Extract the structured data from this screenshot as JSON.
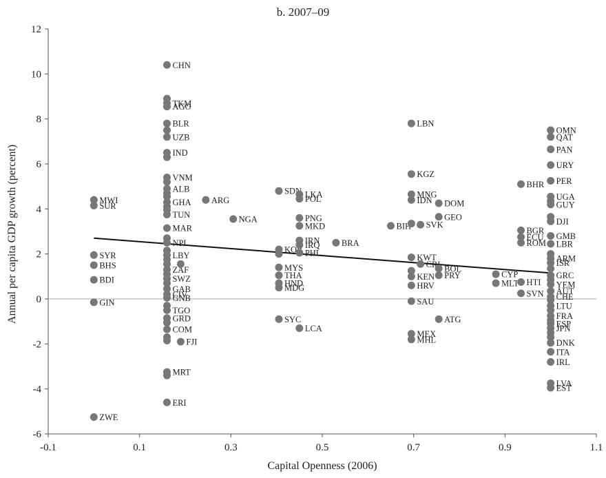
{
  "chart_data": {
    "type": "scatter",
    "title": "b. 2007–09",
    "xlabel": "Capital Openness (2006)",
    "ylabel": "Annual per capita GDP growth (percent)",
    "xlim": [
      -0.1,
      1.1
    ],
    "ylim": [
      -6,
      12
    ],
    "xticks": [
      "-0.1",
      "0.1",
      "0.3",
      "0.5",
      "0.7",
      "0.9",
      "1.1"
    ],
    "yticks": [
      "-6",
      "-4",
      "-2",
      "0",
      "2",
      "4",
      "6",
      "8",
      "10",
      "12"
    ],
    "grid": false,
    "zero_line": true,
    "colors": {
      "marker": "#777777",
      "trend": "#111111",
      "axis": "#555555"
    },
    "trendline": {
      "x": [
        0.0,
        1.0
      ],
      "y": [
        2.7,
        1.15
      ]
    },
    "points": [
      {
        "label": "MWI",
        "x": 0.0,
        "y": 4.4
      },
      {
        "label": "SUR",
        "x": 0.0,
        "y": 4.15
      },
      {
        "label": "SYR",
        "x": 0.0,
        "y": 1.95
      },
      {
        "label": "BHS",
        "x": 0.0,
        "y": 1.5
      },
      {
        "label": "BDI",
        "x": 0.0,
        "y": 0.85
      },
      {
        "label": "GIN",
        "x": 0.0,
        "y": -0.15
      },
      {
        "label": "ZWE",
        "x": 0.0,
        "y": -5.25
      },
      {
        "label": "CHN",
        "x": 0.16,
        "y": 10.4
      },
      {
        "label": "",
        "x": 0.16,
        "y": 8.9
      },
      {
        "label": "TKM",
        "x": 0.16,
        "y": 8.7
      },
      {
        "label": "AGO",
        "x": 0.16,
        "y": 8.55
      },
      {
        "label": "BLR",
        "x": 0.16,
        "y": 7.8
      },
      {
        "label": "",
        "x": 0.16,
        "y": 7.5
      },
      {
        "label": "UZB",
        "x": 0.16,
        "y": 7.2
      },
      {
        "label": "IND",
        "x": 0.16,
        "y": 6.5
      },
      {
        "label": "",
        "x": 0.16,
        "y": 6.3
      },
      {
        "label": "VNM",
        "x": 0.16,
        "y": 5.4
      },
      {
        "label": "",
        "x": 0.16,
        "y": 5.2
      },
      {
        "label": "ALB",
        "x": 0.16,
        "y": 4.9
      },
      {
        "label": "",
        "x": 0.16,
        "y": 4.7
      },
      {
        "label": "",
        "x": 0.16,
        "y": 4.55
      },
      {
        "label": "GHA",
        "x": 0.16,
        "y": 4.3
      },
      {
        "label": "",
        "x": 0.16,
        "y": 4.1
      },
      {
        "label": "",
        "x": 0.16,
        "y": 3.95
      },
      {
        "label": "TUN",
        "x": 0.16,
        "y": 3.75
      },
      {
        "label": "MAR",
        "x": 0.16,
        "y": 3.15
      },
      {
        "label": "",
        "x": 0.16,
        "y": 2.7
      },
      {
        "label": "NPL",
        "x": 0.16,
        "y": 2.5
      },
      {
        "label": "",
        "x": 0.16,
        "y": 2.15
      },
      {
        "label": "LBY",
        "x": 0.16,
        "y": 1.95
      },
      {
        "label": "",
        "x": 0.16,
        "y": 1.75
      },
      {
        "label": "",
        "x": 0.16,
        "y": 1.55
      },
      {
        "label": "ZAF",
        "x": 0.16,
        "y": 1.3
      },
      {
        "label": "",
        "x": 0.16,
        "y": 1.1
      },
      {
        "label": "SWZ",
        "x": 0.16,
        "y": 0.9
      },
      {
        "label": "",
        "x": 0.16,
        "y": 0.7
      },
      {
        "label": "GAB",
        "x": 0.16,
        "y": 0.45
      },
      {
        "label": "CIV",
        "x": 0.16,
        "y": 0.2
      },
      {
        "label": "GNB",
        "x": 0.16,
        "y": 0.05
      },
      {
        "label": "",
        "x": 0.16,
        "y": -0.3
      },
      {
        "label": "TGO",
        "x": 0.16,
        "y": -0.5
      },
      {
        "label": "GRD",
        "x": 0.16,
        "y": -0.85
      },
      {
        "label": "",
        "x": 0.16,
        "y": -1.05
      },
      {
        "label": "COM",
        "x": 0.16,
        "y": -1.35
      },
      {
        "label": "",
        "x": 0.16,
        "y": -1.7
      },
      {
        "label": "",
        "x": 0.16,
        "y": -1.85
      },
      {
        "label": "MRT",
        "x": 0.16,
        "y": -3.25
      },
      {
        "label": "",
        "x": 0.16,
        "y": -3.4
      },
      {
        "label": "ERI",
        "x": 0.16,
        "y": -4.6
      },
      {
        "label": "",
        "x": 0.19,
        "y": 1.55
      },
      {
        "label": "FJI",
        "x": 0.19,
        "y": -1.9
      },
      {
        "label": "ARG",
        "x": 0.245,
        "y": 4.4
      },
      {
        "label": "NGA",
        "x": 0.305,
        "y": 3.55
      },
      {
        "label": "SDN",
        "x": 0.405,
        "y": 4.8
      },
      {
        "label": "KOR",
        "x": 0.405,
        "y": 2.2
      },
      {
        "label": "",
        "x": 0.405,
        "y": 2.0
      },
      {
        "label": "MYS",
        "x": 0.405,
        "y": 1.4
      },
      {
        "label": "THA",
        "x": 0.405,
        "y": 1.05
      },
      {
        "label": "HND",
        "x": 0.405,
        "y": 0.7
      },
      {
        "label": "MDG",
        "x": 0.405,
        "y": 0.5
      },
      {
        "label": "SYC",
        "x": 0.405,
        "y": -0.9
      },
      {
        "label": "LKA",
        "x": 0.45,
        "y": 4.65
      },
      {
        "label": "POL",
        "x": 0.45,
        "y": 4.45
      },
      {
        "label": "PNG",
        "x": 0.45,
        "y": 3.6
      },
      {
        "label": "MKD",
        "x": 0.45,
        "y": 3.25
      },
      {
        "label": "IRN",
        "x": 0.45,
        "y": 2.6
      },
      {
        "label": "IRQ",
        "x": 0.45,
        "y": 2.4
      },
      {
        "label": "PHL",
        "x": 0.45,
        "y": 2.05
      },
      {
        "label": "LCA",
        "x": 0.45,
        "y": -1.3
      },
      {
        "label": "BRA",
        "x": 0.53,
        "y": 2.5
      },
      {
        "label": "BIH",
        "x": 0.65,
        "y": 3.25
      },
      {
        "label": "LBN",
        "x": 0.695,
        "y": 7.8
      },
      {
        "label": "KGZ",
        "x": 0.695,
        "y": 5.55
      },
      {
        "label": "MNG",
        "x": 0.695,
        "y": 4.65
      },
      {
        "label": "IDN",
        "x": 0.695,
        "y": 4.4
      },
      {
        "label": "",
        "x": 0.695,
        "y": 3.35
      },
      {
        "label": "SVK",
        "x": 0.715,
        "y": 3.3
      },
      {
        "label": "KWT",
        "x": 0.695,
        "y": 1.85
      },
      {
        "label": "CRI",
        "x": 0.715,
        "y": 1.55
      },
      {
        "label": "",
        "x": 0.695,
        "y": 1.25
      },
      {
        "label": "KEN",
        "x": 0.695,
        "y": 1.0
      },
      {
        "label": "HRV",
        "x": 0.695,
        "y": 0.6
      },
      {
        "label": "SAU",
        "x": 0.695,
        "y": -0.1
      },
      {
        "label": "MEX",
        "x": 0.695,
        "y": -1.55
      },
      {
        "label": "MHL",
        "x": 0.695,
        "y": -1.8
      },
      {
        "label": "DOM",
        "x": 0.755,
        "y": 4.25
      },
      {
        "label": "GEO",
        "x": 0.755,
        "y": 3.65
      },
      {
        "label": "BOL",
        "x": 0.755,
        "y": 1.35
      },
      {
        "label": "PRY",
        "x": 0.755,
        "y": 1.05
      },
      {
        "label": "ATG",
        "x": 0.755,
        "y": -0.9
      },
      {
        "label": "CYP",
        "x": 0.88,
        "y": 1.1
      },
      {
        "label": "MLT",
        "x": 0.88,
        "y": 0.7
      },
      {
        "label": "BHR",
        "x": 0.935,
        "y": 5.1
      },
      {
        "label": "BGR",
        "x": 0.935,
        "y": 3.05
      },
      {
        "label": "ECU",
        "x": 0.935,
        "y": 2.75
      },
      {
        "label": "ROM",
        "x": 0.935,
        "y": 2.5
      },
      {
        "label": "HTI",
        "x": 0.935,
        "y": 0.75
      },
      {
        "label": "SVN",
        "x": 0.935,
        "y": 0.25
      },
      {
        "label": "OMN",
        "x": 1.0,
        "y": 7.5
      },
      {
        "label": "QAT",
        "x": 1.0,
        "y": 7.2
      },
      {
        "label": "PAN",
        "x": 1.0,
        "y": 6.65
      },
      {
        "label": "URY",
        "x": 1.0,
        "y": 5.95
      },
      {
        "label": "PER",
        "x": 1.0,
        "y": 5.25
      },
      {
        "label": "UGA",
        "x": 1.0,
        "y": 4.55
      },
      {
        "label": "",
        "x": 1.0,
        "y": 4.35
      },
      {
        "label": "GUY",
        "x": 1.0,
        "y": 4.2
      },
      {
        "label": "",
        "x": 1.0,
        "y": 3.65
      },
      {
        "label": "DJI",
        "x": 1.0,
        "y": 3.45
      },
      {
        "label": "GMB",
        "x": 1.0,
        "y": 2.8
      },
      {
        "label": "LBR",
        "x": 1.0,
        "y": 2.45
      },
      {
        "label": "",
        "x": 1.0,
        "y": 2.0
      },
      {
        "label": "ARM",
        "x": 1.0,
        "y": 1.8
      },
      {
        "label": "ISR",
        "x": 1.0,
        "y": 1.6
      },
      {
        "label": "",
        "x": 1.0,
        "y": 1.35
      },
      {
        "label": "GRC",
        "x": 1.0,
        "y": 1.05
      },
      {
        "label": "",
        "x": 1.0,
        "y": 0.85
      },
      {
        "label": "YEM",
        "x": 1.0,
        "y": 0.65
      },
      {
        "label": "AUT",
        "x": 1.0,
        "y": 0.35
      },
      {
        "label": "CHE",
        "x": 1.0,
        "y": 0.1
      },
      {
        "label": "",
        "x": 1.0,
        "y": -0.05
      },
      {
        "label": "LTU",
        "x": 1.0,
        "y": -0.3
      },
      {
        "label": "",
        "x": 1.0,
        "y": -0.5
      },
      {
        "label": "FRA",
        "x": 1.0,
        "y": -0.75
      },
      {
        "label": "",
        "x": 1.0,
        "y": -0.95
      },
      {
        "label": "ESP",
        "x": 1.0,
        "y": -1.1
      },
      {
        "label": "JPN",
        "x": 1.0,
        "y": -1.3
      },
      {
        "label": "",
        "x": 1.0,
        "y": -1.5
      },
      {
        "label": "",
        "x": 1.0,
        "y": -1.7
      },
      {
        "label": "DNK",
        "x": 1.0,
        "y": -1.95
      },
      {
        "label": "ITA",
        "x": 1.0,
        "y": -2.35
      },
      {
        "label": "IRL",
        "x": 1.0,
        "y": -2.8
      },
      {
        "label": "LVA",
        "x": 1.0,
        "y": -3.75
      },
      {
        "label": "EST",
        "x": 1.0,
        "y": -3.95
      }
    ]
  }
}
